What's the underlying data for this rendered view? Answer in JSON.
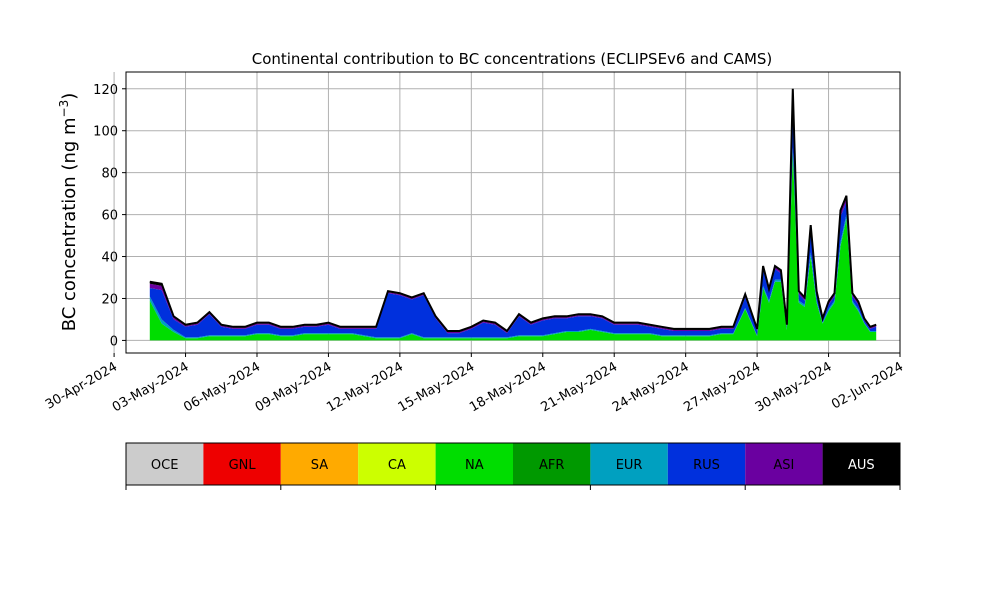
{
  "chart_data": {
    "type": "area",
    "title": "Continental contribution to BC concentrations (ECLIPSEv6 and CAMS)",
    "ylabel": "BC concentration (ng m",
    "ylabel_superscript": "−3",
    "ylabel_close": ")",
    "xlabel": "",
    "x_axis": "date",
    "xlim": [
      "2024-04-30T12:00",
      "2024-06-02T00:00"
    ],
    "ylim": [
      -6,
      128
    ],
    "grid": true,
    "x_ticks": [
      {
        "date": "2024-04-30",
        "label": "30-Apr-2024"
      },
      {
        "date": "2024-05-03",
        "label": "03-May-2024"
      },
      {
        "date": "2024-05-06",
        "label": "06-May-2024"
      },
      {
        "date": "2024-05-09",
        "label": "09-May-2024"
      },
      {
        "date": "2024-05-12",
        "label": "12-May-2024"
      },
      {
        "date": "2024-05-15",
        "label": "15-May-2024"
      },
      {
        "date": "2024-05-18",
        "label": "18-May-2024"
      },
      {
        "date": "2024-05-21",
        "label": "21-May-2024"
      },
      {
        "date": "2024-05-24",
        "label": "24-May-2024"
      },
      {
        "date": "2024-05-27",
        "label": "27-May-2024"
      },
      {
        "date": "2024-05-30",
        "label": "30-May-2024"
      },
      {
        "date": "2024-06-02",
        "label": "02-Jun-2024"
      }
    ],
    "y_ticks": [
      {
        "value": 0,
        "label": "0"
      },
      {
        "value": 20,
        "label": "20"
      },
      {
        "value": 40,
        "label": "40"
      },
      {
        "value": 60,
        "label": "60"
      },
      {
        "value": 80,
        "label": "80"
      },
      {
        "value": 100,
        "label": "100"
      },
      {
        "value": 120,
        "label": "120"
      }
    ],
    "x": [
      "2024-05-01T12:00",
      "2024-05-02T00:00",
      "2024-05-02T12:00",
      "2024-05-03T00:00",
      "2024-05-03T12:00",
      "2024-05-04T00:00",
      "2024-05-04T12:00",
      "2024-05-05T00:00",
      "2024-05-05T12:00",
      "2024-05-06T00:00",
      "2024-05-06T12:00",
      "2024-05-07T00:00",
      "2024-05-07T12:00",
      "2024-05-08T00:00",
      "2024-05-08T12:00",
      "2024-05-09T00:00",
      "2024-05-09T12:00",
      "2024-05-10T00:00",
      "2024-05-10T12:00",
      "2024-05-11T00:00",
      "2024-05-11T12:00",
      "2024-05-12T00:00",
      "2024-05-12T12:00",
      "2024-05-13T00:00",
      "2024-05-13T12:00",
      "2024-05-14T00:00",
      "2024-05-14T12:00",
      "2024-05-15T00:00",
      "2024-05-15T12:00",
      "2024-05-16T00:00",
      "2024-05-16T12:00",
      "2024-05-17T00:00",
      "2024-05-17T12:00",
      "2024-05-18T00:00",
      "2024-05-18T12:00",
      "2024-05-19T00:00",
      "2024-05-19T12:00",
      "2024-05-20T00:00",
      "2024-05-20T12:00",
      "2024-05-21T00:00",
      "2024-05-21T12:00",
      "2024-05-22T00:00",
      "2024-05-22T12:00",
      "2024-05-23T00:00",
      "2024-05-23T12:00",
      "2024-05-24T00:00",
      "2024-05-24T12:00",
      "2024-05-25T00:00",
      "2024-05-25T12:00",
      "2024-05-26T00:00",
      "2024-05-26T12:00",
      "2024-05-27T00:00",
      "2024-05-27T06:00",
      "2024-05-27T12:00",
      "2024-05-27T18:00",
      "2024-05-28T00:00",
      "2024-05-28T06:00",
      "2024-05-28T12:00",
      "2024-05-28T18:00",
      "2024-05-29T00:00",
      "2024-05-29T06:00",
      "2024-05-29T12:00",
      "2024-05-29T18:00",
      "2024-05-30T00:00",
      "2024-05-30T06:00",
      "2024-05-30T12:00",
      "2024-05-30T18:00",
      "2024-05-31T00:00",
      "2024-05-31T06:00",
      "2024-05-31T12:00",
      "2024-05-31T18:00",
      "2024-06-01T00:00"
    ],
    "series": [
      {
        "name": "NA",
        "color": "#00dd00",
        "values": [
          19,
          8,
          4,
          1,
          1,
          2,
          2,
          2,
          2,
          3,
          3,
          2,
          2,
          3,
          3,
          3,
          3,
          3,
          2,
          1,
          1,
          1,
          3,
          1,
          1,
          1,
          1,
          1,
          1,
          1,
          1,
          2,
          2,
          2,
          3,
          4,
          4,
          5,
          4,
          3,
          3,
          3,
          3,
          2,
          2,
          2,
          2,
          2,
          3,
          3,
          15,
          2,
          25,
          18,
          28,
          28,
          5,
          90,
          18,
          16,
          40,
          18,
          8,
          14,
          18,
          45,
          58,
          18,
          14,
          8,
          4,
          4
        ]
      },
      {
        "name": "EUR",
        "color": "#00a0c0",
        "values": [
          2,
          2,
          1,
          0.5,
          0.5,
          0.5,
          0.5,
          0.5,
          0.5,
          0.5,
          0.5,
          0.5,
          0.5,
          0.5,
          0.5,
          0.5,
          0.5,
          0.5,
          0.5,
          0.5,
          0.5,
          0.5,
          0.5,
          0.5,
          0.5,
          0.5,
          0.5,
          0.5,
          0.5,
          0.5,
          0.5,
          0.5,
          0.5,
          0.5,
          0.5,
          0.5,
          0.5,
          0.5,
          0.5,
          0.5,
          0.5,
          0.5,
          0.5,
          0.5,
          0.5,
          0.5,
          0.5,
          0.5,
          0.5,
          0.5,
          0.5,
          0.5,
          1,
          1,
          1,
          1,
          0.5,
          2,
          1,
          1,
          2,
          1,
          0.5,
          1,
          1,
          2,
          2,
          1,
          1,
          0.5,
          0.5,
          0.5
        ]
      },
      {
        "name": "RUS",
        "color": "#0030dd",
        "values": [
          4,
          14,
          5,
          5,
          6,
          10,
          4,
          3,
          3,
          4,
          4,
          3,
          3,
          3,
          3,
          4,
          2,
          2,
          3,
          4,
          21,
          20,
          16,
          20,
          9,
          2,
          2,
          4,
          7,
          6,
          2,
          9,
          5,
          7,
          7,
          6,
          7,
          6,
          6,
          4,
          4,
          4,
          3,
          3,
          2,
          2,
          2,
          2,
          2,
          2,
          5,
          2,
          8,
          4,
          5,
          3,
          1,
          22,
          3,
          2,
          10,
          3,
          1,
          2,
          2,
          12,
          6,
          2,
          2,
          1,
          1,
          2
        ]
      },
      {
        "name": "ASI",
        "color": "#6a00a0",
        "values": [
          2,
          2,
          1,
          0.5,
          0.5,
          0.5,
          0.5,
          0.5,
          0.5,
          0.5,
          0.5,
          0.5,
          0.5,
          0.5,
          0.5,
          0.5,
          0.5,
          0.5,
          0.5,
          0.5,
          0.5,
          0.5,
          0.5,
          0.5,
          0.5,
          0.5,
          0.5,
          0.5,
          0.5,
          0.5,
          0.5,
          0.5,
          0.5,
          0.5,
          0.5,
          0.5,
          0.5,
          0.5,
          0.5,
          0.5,
          0.5,
          0.5,
          0.5,
          0.5,
          0.5,
          0.5,
          0.5,
          0.5,
          0.5,
          0.5,
          1,
          0.5,
          1,
          1,
          1,
          1,
          0.5,
          4,
          1,
          1,
          2,
          1,
          0.5,
          1,
          1,
          2,
          2,
          1,
          1,
          0.5,
          0.5,
          0.5
        ]
      },
      {
        "name": "AUS",
        "color": "#000000",
        "values": [
          1,
          1,
          0.5,
          0.5,
          0.5,
          0.5,
          0.5,
          0.5,
          0.5,
          0.5,
          0.5,
          0.5,
          0.5,
          0.5,
          0.5,
          0.5,
          0.5,
          0.5,
          0.5,
          0.5,
          0.5,
          0.5,
          0.5,
          0.5,
          0.5,
          0.5,
          0.5,
          0.5,
          0.5,
          0.5,
          0.5,
          0.5,
          0.5,
          0.5,
          0.5,
          0.5,
          0.5,
          0.5,
          0.5,
          0.5,
          0.5,
          0.5,
          0.5,
          0.5,
          0.5,
          0.5,
          0.5,
          0.5,
          0.5,
          0.5,
          0.5,
          0.5,
          0.5,
          0.5,
          0.5,
          0.5,
          0.5,
          2,
          0.5,
          0.5,
          1,
          0.5,
          0.5,
          0.5,
          0.5,
          1,
          1,
          0.5,
          0.5,
          0.5,
          0.5,
          0.5
        ]
      }
    ],
    "legend": [
      {
        "label": "OCE",
        "color": "#cccccc"
      },
      {
        "label": "GNL",
        "color": "#ee0000"
      },
      {
        "label": "SA",
        "color": "#ffaa00"
      },
      {
        "label": "CA",
        "color": "#ccff00"
      },
      {
        "label": "NA",
        "color": "#00dd00"
      },
      {
        "label": "AFR",
        "color": "#009900"
      },
      {
        "label": "EUR",
        "color": "#00a0c0"
      },
      {
        "label": "RUS",
        "color": "#0030dd"
      },
      {
        "label": "ASI",
        "color": "#6a00a0"
      },
      {
        "label": "AUS",
        "color": "#000000"
      }
    ],
    "legend_placement": "bottom",
    "total_line_color": "#000000"
  }
}
